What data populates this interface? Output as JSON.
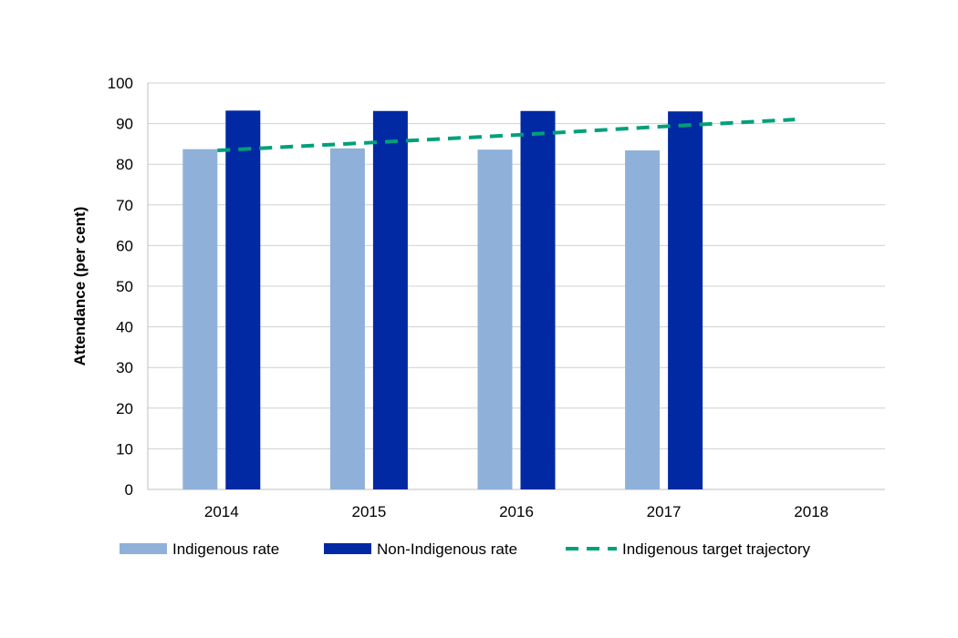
{
  "chart_data": {
    "type": "bar",
    "title": "",
    "xlabel": "",
    "ylabel": "Attendance (per cent)",
    "ylim": [
      0,
      100
    ],
    "yticks": [
      0,
      10,
      20,
      30,
      40,
      50,
      60,
      70,
      80,
      90,
      100
    ],
    "categories": [
      "2014",
      "2015",
      "2016",
      "2017",
      "2018"
    ],
    "grid": true,
    "legend_position": "bottom",
    "series": [
      {
        "name": "Indigenous rate",
        "kind": "bar",
        "color": "#8fb0d9",
        "values": [
          83.7,
          83.9,
          83.6,
          83.4,
          null
        ]
      },
      {
        "name": "Non-Indigenous rate",
        "kind": "bar",
        "color": "#0029a3",
        "values": [
          93.2,
          93.1,
          93.1,
          93.0,
          null
        ]
      },
      {
        "name": "Indigenous target trajectory",
        "kind": "line",
        "style": "dashed",
        "color": "#00a07a",
        "values": [
          83.4,
          85.3,
          87.2,
          89.3,
          91.0
        ]
      }
    ]
  }
}
